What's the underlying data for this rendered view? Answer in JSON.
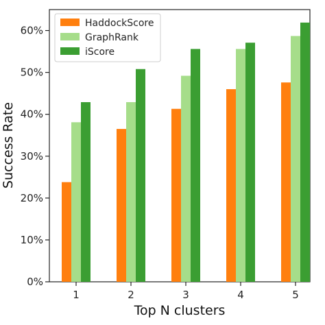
{
  "chart_data": {
    "type": "bar",
    "title": "",
    "xlabel": "Top N clusters",
    "ylabel": "Success Rate",
    "categories": [
      "1",
      "2",
      "3",
      "4",
      "5"
    ],
    "ylim": [
      0,
      65
    ],
    "yticks": [
      0,
      10,
      20,
      30,
      40,
      50,
      60
    ],
    "ytick_labels": [
      "0%",
      "10%",
      "20%",
      "30%",
      "40%",
      "50%",
      "60%"
    ],
    "series": [
      {
        "name": "HaddockScore",
        "color": "#ff7f0e",
        "values": [
          23.8,
          36.5,
          41.3,
          46.0,
          47.6
        ]
      },
      {
        "name": "GraphRank",
        "color": "#a6dd8a",
        "values": [
          38.1,
          42.9,
          49.2,
          55.6,
          58.7
        ]
      },
      {
        "name": "iScore",
        "color": "#3b9e32",
        "values": [
          42.9,
          50.8,
          55.6,
          57.1,
          61.9
        ]
      }
    ],
    "legend_position": "top-left",
    "grid": false
  }
}
